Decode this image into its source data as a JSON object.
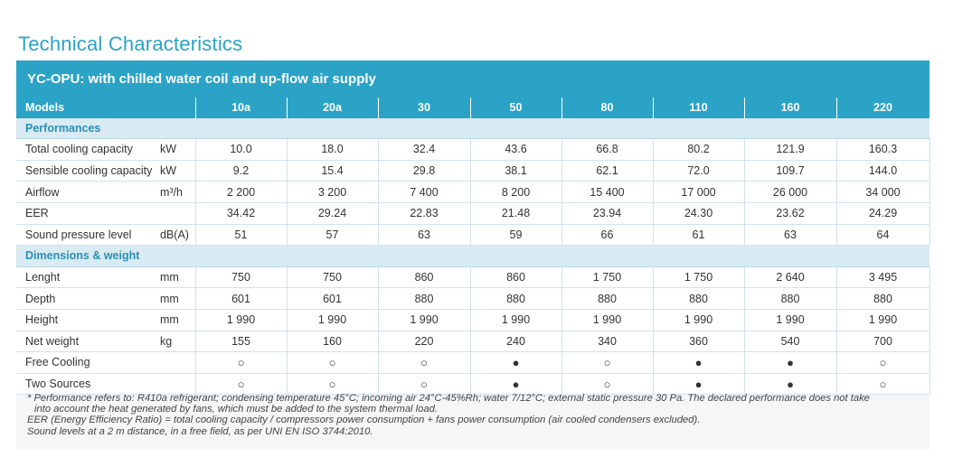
{
  "page_title": "Technical Characteristics",
  "banner_title": "YC-OPU: with chilled water coil and up-flow air supply",
  "models_label": "Models",
  "models": [
    "10a",
    "20a",
    "30",
    "50",
    "80",
    "110",
    "160",
    "220"
  ],
  "sections": [
    {
      "title": "Performances",
      "rows": [
        {
          "label": "Total cooling capacity",
          "unit": "kW",
          "values": [
            "10.0",
            "18.0",
            "32.4",
            "43.6",
            "66.8",
            "80.2",
            "121.9",
            "160.3"
          ]
        },
        {
          "label": "Sensible cooling capacity",
          "unit": "kW",
          "values": [
            "9.2",
            "15.4",
            "29.8",
            "38.1",
            "62.1",
            "72.0",
            "109.7",
            "144.0"
          ]
        },
        {
          "label": "Airflow",
          "unit": "m³/h",
          "values": [
            "2 200",
            "3 200",
            "7 400",
            "8 200",
            "15 400",
            "17 000",
            "26 000",
            "34 000"
          ]
        },
        {
          "label": "EER",
          "unit": "",
          "values": [
            "34.42",
            "29.24",
            "22.83",
            "21.48",
            "23.94",
            "24.30",
            "23.62",
            "24.29"
          ]
        },
        {
          "label": "Sound pressure level",
          "unit": "dB(A)",
          "values": [
            "51",
            "57",
            "63",
            "59",
            "66",
            "61",
            "63",
            "64"
          ]
        }
      ]
    },
    {
      "title": "Dimensions & weight",
      "rows": [
        {
          "label": "Lenght",
          "unit": "mm",
          "values": [
            "750",
            "750",
            "860",
            "860",
            "1 750",
            "1 750",
            "2 640",
            "3 495"
          ]
        },
        {
          "label": "Depth",
          "unit": "mm",
          "values": [
            "601",
            "601",
            "880",
            "880",
            "880",
            "880",
            "880",
            "880"
          ]
        },
        {
          "label": "Height",
          "unit": "mm",
          "values": [
            "1 990",
            "1 990",
            "1 990",
            "1 990",
            "1 990",
            "1 990",
            "1 990",
            "1 990"
          ]
        },
        {
          "label": "Net weight",
          "unit": "kg",
          "values": [
            "155",
            "160",
            "220",
            "240",
            "340",
            "360",
            "540",
            "700"
          ]
        },
        {
          "label": "Free Cooling",
          "unit": "",
          "values": [
            "○",
            "○",
            "○",
            "●",
            "○",
            "●",
            "●",
            "○"
          ]
        },
        {
          "label": "Two Sources",
          "unit": "",
          "values": [
            "○",
            "○",
            "○",
            "●",
            "○",
            "●",
            "●",
            "○"
          ]
        }
      ]
    }
  ],
  "notes": [
    "* Performance refers to: R410a refrigerant; condensing temperature 45°C; incoming air 24°C-45%Rh; water 7/12°C; external static pressure 30 Pa. The declared performance does not take",
    "into account the heat generated by fans, which must be added to the system thermal load.",
    "EER (Energy Efficiency Ratio) = total cooling capacity / compressors power consumption + fans power consumption (air cooled condensers excluded).",
    "Sound levels at a 2 m distance, in a free field, as per UNI EN ISO 3744:2010."
  ]
}
